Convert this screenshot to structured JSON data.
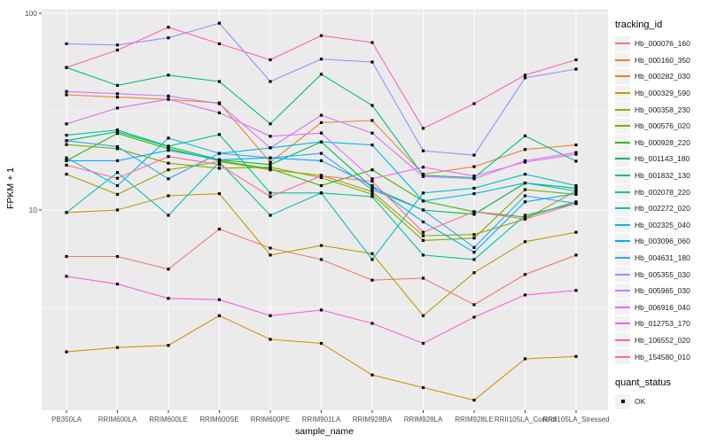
{
  "theme": {
    "panel_bg": "#EBEBEB",
    "grid_color": "#FFFFFF",
    "legend_key_bg": "#F2F2F2",
    "tick_text_color": "#4D4D4D",
    "tick_mark_color": "#333333",
    "point_color": "#000000"
  },
  "chart_data": {
    "type": "line",
    "title": "",
    "xlabel": "sample_name",
    "ylabel": "FPKM + 1",
    "y_scale": "log10",
    "ylim": [
      0.95,
      110
    ],
    "y_major_ticks": [
      10,
      100
    ],
    "y_minor_breaks": [
      3.162,
      31.62
    ],
    "grid": true,
    "legend_position": "right",
    "color_legend_title": "tracking_id",
    "shape_legend_title": "quant_status",
    "shape_legend_items": [
      {
        "label": "OK",
        "shape": "black-square"
      }
    ],
    "categories": [
      "PB350LA",
      "RRIM600LA",
      "RRIM600LE",
      "RRIM600SE",
      "RRIM600PE",
      "RRIM901LA",
      "RRIM928BA",
      "RRIM928LA",
      "RRIM928LE",
      "RRII105LA_Control",
      "RRII105LA_Stressed"
    ],
    "series": [
      {
        "name": "Hb_000076_160",
        "color": "#F8766D",
        "values": [
          5.8,
          5.8,
          5.0,
          8.0,
          6.4,
          5.6,
          4.4,
          4.5,
          3.3,
          4.7,
          5.9
        ]
      },
      {
        "name": "Hb_000160_350",
        "color": "#EA8331",
        "values": [
          38.5,
          37.5,
          36.5,
          35.0,
          17.5,
          27.8,
          28.5,
          15.2,
          16.6,
          20.3,
          21.4
        ]
      },
      {
        "name": "Hb_000282_030",
        "color": "#D89000",
        "values": [
          1.9,
          2.0,
          2.05,
          2.9,
          2.2,
          2.1,
          1.45,
          1.25,
          1.08,
          1.75,
          1.8
        ]
      },
      {
        "name": "Hb_000329_590",
        "color": "#C09B00",
        "values": [
          9.7,
          10.0,
          11.8,
          12.1,
          5.9,
          6.6,
          6.0,
          2.9,
          4.8,
          6.9,
          7.7
        ]
      },
      {
        "name": "Hb_000358_230",
        "color": "#A3A500",
        "values": [
          15.2,
          12.0,
          16.0,
          17.6,
          16.0,
          15.0,
          12.4,
          7.4,
          7.5,
          9.0,
          12.5
        ]
      },
      {
        "name": "Hb_000576_020",
        "color": "#7CAE00",
        "values": [
          21.5,
          20.5,
          17.3,
          16.3,
          16.5,
          14.6,
          12.0,
          7.0,
          7.2,
          12.7,
          12.0
        ]
      },
      {
        "name": "Hb_000928_220",
        "color": "#39B600",
        "values": [
          17.8,
          24.5,
          20.5,
          17.8,
          16.2,
          13.3,
          16.0,
          11.1,
          9.8,
          9.2,
          11.0
        ]
      },
      {
        "name": "Hb_001143_180",
        "color": "#00BB4E",
        "values": [
          22.5,
          25.0,
          21.0,
          18.0,
          17.0,
          22.2,
          13.0,
          10.0,
          9.5,
          13.7,
          12.9
        ]
      },
      {
        "name": "Hb_001832_130",
        "color": "#00BF7D",
        "values": [
          53,
          43,
          48.5,
          45,
          27.4,
          49,
          34,
          15.0,
          14.6,
          23.8,
          17.7
        ]
      },
      {
        "name": "Hb_002078_220",
        "color": "#00C1A3",
        "values": [
          24.0,
          25.5,
          21.1,
          24.2,
          12.2,
          12.2,
          11.7,
          5.9,
          5.6,
          9.4,
          10.8
        ]
      },
      {
        "name": "Hb_002272_020",
        "color": "#00BFC4",
        "values": [
          9.7,
          15.5,
          9.4,
          17.5,
          9.4,
          12.2,
          5.6,
          12.2,
          12.9,
          15.2,
          13.3
        ]
      },
      {
        "name": "Hb_002325_040",
        "color": "#00BAE0",
        "values": [
          18.4,
          13.3,
          23.2,
          19.4,
          20.7,
          22.2,
          21.4,
          11.1,
          12.1,
          13.7,
          12.5
        ]
      },
      {
        "name": "Hb_003096_060",
        "color": "#00B0F6",
        "values": [
          17.8,
          17.8,
          20.1,
          18.0,
          18.4,
          17.8,
          13.3,
          8.7,
          6.1,
          11.0,
          12.1
        ]
      },
      {
        "name": "Hb_004631_180",
        "color": "#35A2FF",
        "values": [
          22.5,
          21.0,
          14.4,
          19.4,
          18.4,
          19.4,
          12.7,
          10.0,
          6.45,
          11.8,
          10.8
        ]
      },
      {
        "name": "Hb_005355_030",
        "color": "#9590FF",
        "values": [
          70,
          69,
          75,
          89,
          45,
          58.5,
          56.5,
          20.0,
          19.0,
          47,
          52
        ]
      },
      {
        "name": "Hb_005965_030",
        "color": "#C77CFF",
        "values": [
          40,
          39,
          38,
          34.7,
          20.7,
          30.3,
          24.6,
          14.8,
          14.4,
          17.8,
          19.6
        ]
      },
      {
        "name": "Hb_006916_040",
        "color": "#E76BF3",
        "values": [
          27.4,
          33,
          36.6,
          31.2,
          23.7,
          24.6,
          14.4,
          16.5,
          14.9,
          17.5,
          19.2
        ]
      },
      {
        "name": "Hb_012753_170",
        "color": "#FA62DB",
        "values": [
          4.6,
          4.2,
          3.55,
          3.5,
          2.9,
          3.1,
          2.65,
          2.1,
          2.85,
          3.7,
          3.9
        ]
      },
      {
        "name": "Hb_106552_020",
        "color": "#FF62BC",
        "values": [
          53,
          65,
          85,
          70,
          58,
          77,
          71,
          26,
          34.7,
          48.5,
          58
        ]
      },
      {
        "name": "Hb_154580_010",
        "color": "#FF6A98",
        "values": [
          16.9,
          14.5,
          18.7,
          17.0,
          11.7,
          14.9,
          14.0,
          7.7,
          9.8,
          9.0,
          10.8
        ]
      }
    ]
  }
}
